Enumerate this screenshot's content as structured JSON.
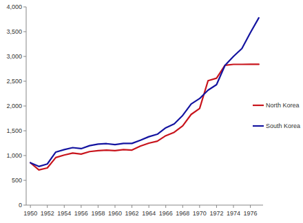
{
  "chart_data": {
    "type": "line",
    "x": [
      1950,
      1951,
      1952,
      1953,
      1954,
      1955,
      1956,
      1957,
      1958,
      1959,
      1960,
      1961,
      1962,
      1963,
      1964,
      1965,
      1966,
      1967,
      1968,
      1969,
      1970,
      1971,
      1972,
      1973,
      1974,
      1975,
      1976,
      1977
    ],
    "series": [
      {
        "name": "North Korea",
        "color": "#c8141c",
        "values": [
          854,
          710,
          750,
          960,
          1010,
          1050,
          1030,
          1080,
          1100,
          1110,
          1100,
          1120,
          1110,
          1190,
          1250,
          1290,
          1400,
          1470,
          1600,
          1830,
          1950,
          2510,
          2560,
          2820,
          2840,
          2840,
          2841,
          2841
        ]
      },
      {
        "name": "South Korea",
        "color": "#1414a0",
        "values": [
          854,
          780,
          830,
          1070,
          1120,
          1160,
          1140,
          1200,
          1230,
          1240,
          1220,
          1245,
          1245,
          1310,
          1380,
          1430,
          1560,
          1640,
          1810,
          2040,
          2150,
          2320,
          2430,
          2820,
          3000,
          3160,
          3480,
          3780
        ]
      }
    ],
    "xlim": [
      1949.5,
      1977.5
    ],
    "xticks": [
      1950,
      1952,
      1954,
      1956,
      1958,
      1960,
      1962,
      1964,
      1966,
      1968,
      1970,
      1972,
      1974,
      1976
    ],
    "ylim": [
      0,
      4000
    ],
    "yticks": [
      0,
      500,
      {
        "value": 1000,
        "label": "1,000"
      },
      {
        "value": 1500,
        "label": "1,500"
      },
      {
        "value": 2000,
        "label": "2,000"
      },
      {
        "value": 2500,
        "label": "2,500"
      },
      {
        "value": 3000,
        "label": "3,000"
      },
      {
        "value": 3500,
        "label": "3,500"
      },
      {
        "value": 4000,
        "label": "4,000"
      }
    ],
    "grid": false,
    "legend": "right"
  }
}
